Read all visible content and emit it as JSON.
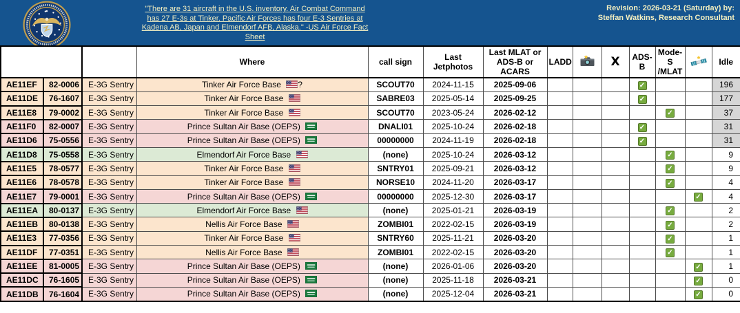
{
  "banner": {
    "seal": "department-of-the-air-force-seal",
    "quote_lines": [
      "\"There are 31 aircraft in the U.S. inventory. Air Combat Command",
      "has 27 E-3s at Tinker. Pacific Air Forces has four E-3 Sentries at",
      "Kadena AB, Japan and Elmendorf AFB, Alaska.\" -US Air Force Fact",
      "Sheet"
    ],
    "revision_line1": "Revision: 2026-03-21 (Saturday) by:",
    "revision_line2": "Steffan Watkins, Research Consultant",
    "background_color": "#15548F",
    "text_color": "#F2EEC0"
  },
  "table": {
    "headers": {
      "hex": "",
      "serial": "",
      "type": "",
      "where": "Where",
      "call_sign": "call sign",
      "last_jetphotos": "Last Jetphotos",
      "last_mlat": "Last MLAT or ADS-B or ACARS",
      "ladd": "LADD",
      "camera_icon": "camera-icon",
      "x_label": "X",
      "adsb": "ADS-B",
      "modes_mlat": "Mode-S /MLAT",
      "satellite_icon": "satellite-icon",
      "idle": "Idle"
    },
    "colors": {
      "tinker": "#FCE5CD",
      "nellis": "#FCE5CD",
      "prince_sultan": "#F5D6D5",
      "elmendorf": "#DCEAD5",
      "idle_stale_bg": "#D6D6D6",
      "check_green": "#77AB3F"
    },
    "rows": [
      {
        "hex": "AE11EF",
        "serial": "82-0006",
        "type": "E-3G Sentry",
        "where": "Tinker Air Force Base",
        "flag": "us",
        "where_suffix": "?",
        "call_sign": "SCOUT70",
        "last_jetphotos": "2024-11-15",
        "last_mlat": "2025-09-06",
        "ladd": "",
        "camera": "",
        "x": "",
        "check": "adsb",
        "idle": "196",
        "location_color": "tinker",
        "idle_stale": true
      },
      {
        "hex": "AE11DE",
        "serial": "76-1607",
        "type": "E-3G Sentry",
        "where": "Tinker Air Force Base",
        "flag": "us",
        "where_suffix": "",
        "call_sign": "SABRE03",
        "last_jetphotos": "2025-05-14",
        "last_mlat": "2025-09-25",
        "ladd": "",
        "camera": "",
        "x": "",
        "check": "adsb",
        "idle": "177",
        "location_color": "tinker",
        "idle_stale": true
      },
      {
        "hex": "AE11E8",
        "serial": "79-0002",
        "type": "E-3G Sentry",
        "where": "Tinker Air Force Base",
        "flag": "us",
        "where_suffix": "",
        "call_sign": "SCOUT70",
        "last_jetphotos": "2023-05-24",
        "last_mlat": "2026-02-12",
        "ladd": "",
        "camera": "",
        "x": "",
        "check": "modes",
        "idle": "37",
        "location_color": "tinker",
        "idle_stale": true
      },
      {
        "hex": "AE11F0",
        "serial": "82-0007",
        "type": "E-3G Sentry",
        "where": "Prince Sultan Air Base (OEPS)",
        "flag": "sa",
        "where_suffix": "",
        "call_sign": "DNALI01",
        "last_jetphotos": "2025-10-24",
        "last_mlat": "2026-02-18",
        "ladd": "",
        "camera": "",
        "x": "",
        "check": "adsb",
        "idle": "31",
        "location_color": "prince_sultan",
        "idle_stale": true
      },
      {
        "hex": "AE11D6",
        "serial": "75-0556",
        "type": "E-3G Sentry",
        "where": "Prince Sultan Air Base (OEPS)",
        "flag": "sa",
        "where_suffix": "",
        "call_sign": "00000000",
        "last_jetphotos": "2024-11-19",
        "last_mlat": "2026-02-18",
        "ladd": "",
        "camera": "",
        "x": "",
        "check": "adsb",
        "idle": "31",
        "location_color": "prince_sultan",
        "idle_stale": true
      },
      {
        "hex": "AE11D8",
        "serial": "75-0558",
        "type": "E-3G Sentry",
        "where": "Elmendorf Air Force Base",
        "flag": "us",
        "where_suffix": "",
        "call_sign": "(none)",
        "last_jetphotos": "2025-10-24",
        "last_mlat": "2026-03-12",
        "ladd": "",
        "camera": "",
        "x": "",
        "check": "modes",
        "idle": "9",
        "location_color": "elmendorf",
        "idle_stale": false
      },
      {
        "hex": "AE11E5",
        "serial": "78-0577",
        "type": "E-3G Sentry",
        "where": "Tinker Air Force Base",
        "flag": "us",
        "where_suffix": "",
        "call_sign": "SNTRY01",
        "last_jetphotos": "2025-09-21",
        "last_mlat": "2026-03-12",
        "ladd": "",
        "camera": "",
        "x": "",
        "check": "modes",
        "idle": "9",
        "location_color": "tinker",
        "idle_stale": false
      },
      {
        "hex": "AE11E6",
        "serial": "78-0578",
        "type": "E-3G Sentry",
        "where": "Tinker Air Force Base",
        "flag": "us",
        "where_suffix": "",
        "call_sign": "NORSE10",
        "last_jetphotos": "2024-11-20",
        "last_mlat": "2026-03-17",
        "ladd": "",
        "camera": "",
        "x": "",
        "check": "modes",
        "idle": "4",
        "location_color": "tinker",
        "idle_stale": false
      },
      {
        "hex": "AE11E7",
        "serial": "79-0001",
        "type": "E-3G Sentry",
        "where": "Prince Sultan Air Base (OEPS)",
        "flag": "sa",
        "where_suffix": "",
        "call_sign": "00000000",
        "last_jetphotos": "2025-12-30",
        "last_mlat": "2026-03-17",
        "ladd": "",
        "camera": "",
        "x": "",
        "check": "sat",
        "idle": "4",
        "location_color": "prince_sultan",
        "idle_stale": false
      },
      {
        "hex": "AE11EA",
        "serial": "80-0137",
        "type": "E-3G Sentry",
        "where": "Elmendorf Air Force Base",
        "flag": "us",
        "where_suffix": "",
        "call_sign": "(none)",
        "last_jetphotos": "2025-01-21",
        "last_mlat": "2026-03-19",
        "ladd": "",
        "camera": "",
        "x": "",
        "check": "modes",
        "idle": "2",
        "location_color": "elmendorf",
        "idle_stale": false
      },
      {
        "hex": "AE11EB",
        "serial": "80-0138",
        "type": "E-3G Sentry",
        "where": "Nellis Air Force Base",
        "flag": "us",
        "where_suffix": "",
        "call_sign": "ZOMBI01",
        "last_jetphotos": "2022-02-15",
        "last_mlat": "2026-03-19",
        "ladd": "",
        "camera": "",
        "x": "",
        "check": "modes",
        "idle": "2",
        "location_color": "nellis",
        "idle_stale": false
      },
      {
        "hex": "AE11E3",
        "serial": "77-0356",
        "type": "E-3G Sentry",
        "where": "Tinker Air Force Base",
        "flag": "us",
        "where_suffix": "",
        "call_sign": "SNTRY60",
        "last_jetphotos": "2025-11-21",
        "last_mlat": "2026-03-20",
        "ladd": "",
        "camera": "",
        "x": "",
        "check": "modes",
        "idle": "1",
        "location_color": "tinker",
        "idle_stale": false
      },
      {
        "hex": "AE11DF",
        "serial": "77-0351",
        "type": "E-3G Sentry",
        "where": "Nellis Air Force Base",
        "flag": "us",
        "where_suffix": "",
        "call_sign": "ZOMBI01",
        "last_jetphotos": "2022-02-15",
        "last_mlat": "2026-03-20",
        "ladd": "",
        "camera": "",
        "x": "",
        "check": "modes",
        "idle": "1",
        "location_color": "nellis",
        "idle_stale": false
      },
      {
        "hex": "AE11EE",
        "serial": "81-0005",
        "type": "E-3G Sentry",
        "where": "Prince Sultan Air Base (OEPS)",
        "flag": "sa",
        "where_suffix": "",
        "call_sign": "(none)",
        "last_jetphotos": "2026-01-06",
        "last_mlat": "2026-03-20",
        "ladd": "",
        "camera": "",
        "x": "",
        "check": "sat",
        "idle": "1",
        "location_color": "prince_sultan",
        "idle_stale": false
      },
      {
        "hex": "AE11DC",
        "serial": "76-1605",
        "type": "E-3G Sentry",
        "where": "Prince Sultan Air Base (OEPS)",
        "flag": "sa",
        "where_suffix": "",
        "call_sign": "(none)",
        "last_jetphotos": "2025-11-18",
        "last_mlat": "2026-03-21",
        "ladd": "",
        "camera": "",
        "x": "",
        "check": "sat",
        "idle": "0",
        "location_color": "prince_sultan",
        "idle_stale": false
      },
      {
        "hex": "AE11DB",
        "serial": "76-1604",
        "type": "E-3G Sentry",
        "where": "Prince Sultan Air Base (OEPS)",
        "flag": "sa",
        "where_suffix": "",
        "call_sign": "(none)",
        "last_jetphotos": "2025-12-04",
        "last_mlat": "2026-03-21",
        "ladd": "",
        "camera": "",
        "x": "",
        "check": "sat",
        "idle": "0",
        "location_color": "prince_sultan",
        "idle_stale": false
      }
    ]
  }
}
